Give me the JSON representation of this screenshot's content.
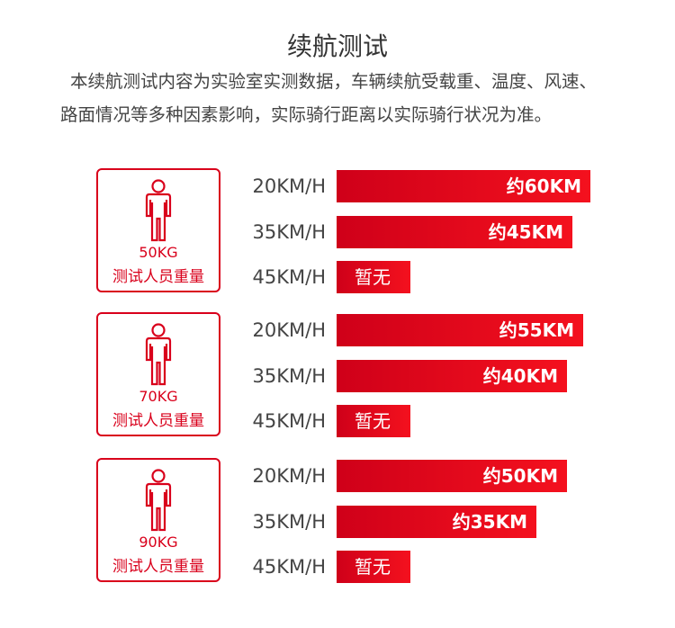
{
  "header": {
    "title": "续航测试",
    "note": "本续航测试内容为实验室实测数据，车辆续航受载重、温度、风速、路面情况等多种因素影响，实际骑行距离以实际骑行状况为准。"
  },
  "groups": [
    {
      "weight": "50KG",
      "caption": "测试人员重量",
      "rows": [
        {
          "speed": "20KM/H",
          "range": "约60KM"
        },
        {
          "speed": "35KM/H",
          "range": "约45KM"
        },
        {
          "speed": "45KM/H",
          "range": "暂无"
        }
      ]
    },
    {
      "weight": "70KG",
      "caption": "测试人员重量",
      "rows": [
        {
          "speed": "20KM/H",
          "range": "约55KM"
        },
        {
          "speed": "35KM/H",
          "range": "约40KM"
        },
        {
          "speed": "45KM/H",
          "range": "暂无"
        }
      ]
    },
    {
      "weight": "90KG",
      "caption": "测试人员重量",
      "rows": [
        {
          "speed": "20KM/H",
          "range": "约50KM"
        },
        {
          "speed": "35KM/H",
          "range": "约35KM"
        },
        {
          "speed": "45KM/H",
          "range": "暂无"
        }
      ]
    }
  ]
}
